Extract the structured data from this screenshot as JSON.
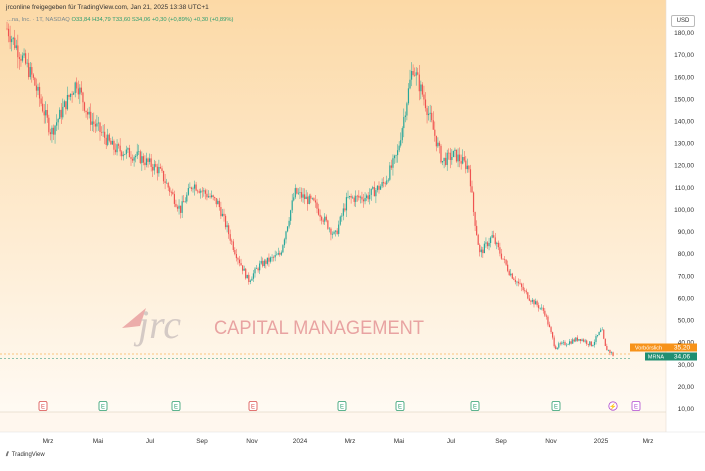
{
  "header": {
    "publisher_line": "jrconline freigegeben für TradingView.com, Jan 21, 2025 13:38 UTC+1",
    "symbol_line": "...na, Inc. · 1T, NASDAQ",
    "ohlc": "O33,84 H34,79 T33,60 S34,06 +0,30 (+0,89%) +0,30 (+0,89%)"
  },
  "currency_button": "USD",
  "watermark": {
    "logo_text": "jrc",
    "company_text": "CAPITAL MANAGEMENT"
  },
  "price_badges": {
    "prev_label": "Vorbörslich",
    "prev_value": "35,20",
    "last_label": "MRNA",
    "last_value": "34,06"
  },
  "footer": {
    "brand": "TradingView"
  },
  "colors": {
    "up": "#26a69a",
    "down": "#ef5350",
    "bg_top": "#fcd9a6",
    "bg_bottom": "#fffaf3",
    "prev_badge": "#f7931a",
    "last_badge": "#1f8f72"
  },
  "chart_data": {
    "type": "candlestick",
    "title": "",
    "x_tick_labels": [
      "Mrz",
      "Mai",
      "Jul",
      "Sep",
      "Nov",
      "2024",
      "Mrz",
      "Mai",
      "Jul",
      "Sep",
      "Nov",
      "2025",
      "Mrz"
    ],
    "y_tick_labels": [
      "180,00",
      "170,00",
      "160,00",
      "150,00",
      "140,00",
      "130,00",
      "120,00",
      "110,00",
      "100,00",
      "90,00",
      "80,00",
      "70,00",
      "60,00",
      "50,00",
      "40,00",
      "30,00",
      "20,00",
      "10,00"
    ],
    "ylim": [
      10,
      185
    ],
    "approx_close_path": [
      {
        "date": "2023-01-10",
        "close": 182
      },
      {
        "date": "2023-02-10",
        "close": 160
      },
      {
        "date": "2023-03-05",
        "close": 135
      },
      {
        "date": "2023-04-05",
        "close": 158
      },
      {
        "date": "2023-04-20",
        "close": 142
      },
      {
        "date": "2023-05-20",
        "close": 128
      },
      {
        "date": "2023-06-20",
        "close": 124
      },
      {
        "date": "2023-07-15",
        "close": 118
      },
      {
        "date": "2023-08-10",
        "close": 100
      },
      {
        "date": "2023-08-25",
        "close": 112
      },
      {
        "date": "2023-09-25",
        "close": 103
      },
      {
        "date": "2023-10-15",
        "close": 82
      },
      {
        "date": "2023-11-01",
        "close": 68
      },
      {
        "date": "2023-11-15",
        "close": 75
      },
      {
        "date": "2023-12-10",
        "close": 80
      },
      {
        "date": "2023-12-28",
        "close": 108
      },
      {
        "date": "2024-01-20",
        "close": 103
      },
      {
        "date": "2024-02-15",
        "close": 88
      },
      {
        "date": "2024-03-01",
        "close": 105
      },
      {
        "date": "2024-03-25",
        "close": 106
      },
      {
        "date": "2024-04-15",
        "close": 112
      },
      {
        "date": "2024-05-01",
        "close": 125
      },
      {
        "date": "2024-05-20",
        "close": 165
      },
      {
        "date": "2024-06-05",
        "close": 148
      },
      {
        "date": "2024-06-25",
        "close": 122
      },
      {
        "date": "2024-07-10",
        "close": 125
      },
      {
        "date": "2024-07-28",
        "close": 119
      },
      {
        "date": "2024-08-02",
        "close": 100
      },
      {
        "date": "2024-08-10",
        "close": 80
      },
      {
        "date": "2024-08-25",
        "close": 88
      },
      {
        "date": "2024-09-15",
        "close": 72
      },
      {
        "date": "2024-10-10",
        "close": 60
      },
      {
        "date": "2024-10-28",
        "close": 54
      },
      {
        "date": "2024-11-10",
        "close": 38
      },
      {
        "date": "2024-11-25",
        "close": 40
      },
      {
        "date": "2024-12-10",
        "close": 42
      },
      {
        "date": "2024-12-25",
        "close": 39
      },
      {
        "date": "2025-01-06",
        "close": 46
      },
      {
        "date": "2025-01-10",
        "close": 38
      },
      {
        "date": "2025-01-21",
        "close": 34.06
      }
    ],
    "event_markers": [
      {
        "label": "E",
        "kind": "earnings-miss"
      },
      {
        "label": "E",
        "kind": "earnings-beat"
      },
      {
        "label": "E",
        "kind": "earnings-beat"
      },
      {
        "label": "E",
        "kind": "earnings-miss"
      },
      {
        "label": "E",
        "kind": "earnings-beat"
      },
      {
        "label": "E",
        "kind": "earnings-beat"
      },
      {
        "label": "E",
        "kind": "earnings-beat"
      },
      {
        "label": "E",
        "kind": "earnings-beat"
      },
      {
        "label": "⚡",
        "kind": "event"
      },
      {
        "label": "E",
        "kind": "earnings-upcoming"
      }
    ],
    "legend": "none",
    "grid": false
  }
}
